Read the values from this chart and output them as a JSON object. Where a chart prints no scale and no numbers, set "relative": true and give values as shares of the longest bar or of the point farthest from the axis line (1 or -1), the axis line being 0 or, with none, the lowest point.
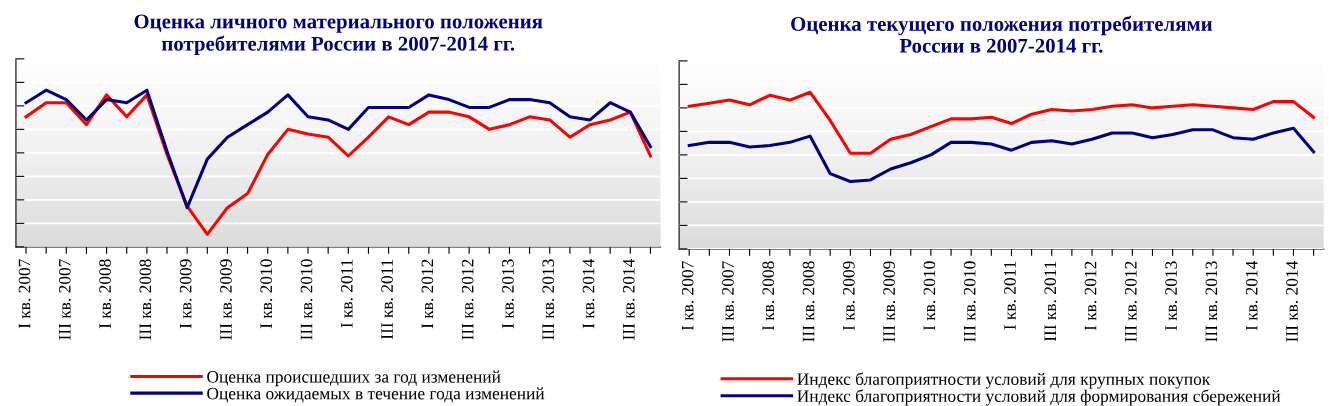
{
  "chart_data": [
    {
      "type": "line",
      "title": "Оценка личного материального положения\nпотребителями России в 2007-2014 гг.",
      "relative": true,
      "grid": "y",
      "legend": "bottom",
      "marker": "none",
      "line_style": "solid",
      "categories": [
        "I кв. 2007",
        null,
        "III кв. 2007",
        null,
        "I кв. 2008",
        null,
        "III кв. 2008",
        null,
        "I кв. 2009",
        null,
        "III кв. 2009",
        null,
        "I кв. 2010",
        null,
        "III кв. 2010",
        null,
        "I кв. 2011",
        null,
        "III кв. 2011",
        null,
        "I кв. 2012",
        null,
        "III кв. 2012",
        null,
        "I кв. 2013",
        null,
        "III кв. 2013",
        null,
        "I кв. 2014",
        null,
        "III кв. 2014",
        null
      ],
      "series": [
        {
          "name": "Оценка происшедших за год изменений",
          "color": "#ff0000",
          "values": [
            0.83,
            0.92,
            0.92,
            0.78,
            0.97,
            0.83,
            0.97,
            0.59,
            0.26,
            0.08,
            0.25,
            0.34,
            0.59,
            0.75,
            0.72,
            0.7,
            0.58,
            0.7,
            0.83,
            0.78,
            0.86,
            0.86,
            0.83,
            0.75,
            0.78,
            0.83,
            0.81,
            0.7,
            0.78,
            0.81,
            0.86,
            0.58
          ]
        },
        {
          "name": "Оценка ожидаемых в течение года изменений",
          "color": "#000080",
          "values": [
            0.92,
            1,
            0.94,
            0.81,
            0.94,
            0.92,
            1,
            0.61,
            0.25,
            0.56,
            0.7,
            0.78,
            0.86,
            0.97,
            0.83,
            0.81,
            0.75,
            0.89,
            0.89,
            0.89,
            0.97,
            0.94,
            0.89,
            0.89,
            0.94,
            0.94,
            0.92,
            0.83,
            0.81,
            0.92,
            0.86,
            0.64
          ]
        }
      ]
    },
    {
      "type": "line",
      "title": "Оценка текущего положения потребителями\nРоссии в 2007-2014 гг.",
      "relative": true,
      "grid": "y",
      "legend": "bottom",
      "marker": "none",
      "line_style": "solid",
      "categories": [
        "I кв. 2007",
        null,
        "III кв. 2007",
        null,
        "I кв. 2008",
        null,
        "III кв. 2008",
        null,
        "I кв. 2009",
        null,
        "III кв. 2009",
        null,
        "I кв. 2010",
        null,
        "III кв. 2010",
        null,
        "I кв. 2011",
        null,
        "III кв. 2011",
        null,
        "I кв. 2012",
        null,
        "III кв. 2012",
        null,
        "I кв. 2013",
        null,
        "III кв. 2013",
        null,
        "I кв. 2014",
        null,
        "III кв. 2014",
        null
      ],
      "series": [
        {
          "name": "Индекс благоприятности условий для крупных покупок",
          "color": "#ff0000",
          "values": [
            0.91,
            0.93,
            0.95,
            0.92,
            0.98,
            0.95,
            1,
            0.82,
            0.61,
            0.61,
            0.7,
            0.73,
            0.78,
            0.83,
            0.83,
            0.84,
            0.8,
            0.86,
            0.89,
            0.88,
            0.89,
            0.91,
            0.92,
            0.9,
            0.91,
            0.92,
            0.91,
            0.9,
            0.89,
            0.94,
            0.94,
            0.84
          ]
        },
        {
          "name": "Индекс благоприятности условий для формирования сбережений",
          "color": "#000080",
          "values": [
            0.66,
            0.68,
            0.68,
            0.65,
            0.66,
            0.68,
            0.72,
            0.48,
            0.43,
            0.44,
            0.51,
            0.55,
            0.6,
            0.68,
            0.68,
            0.67,
            0.63,
            0.68,
            0.69,
            0.67,
            0.7,
            0.74,
            0.74,
            0.71,
            0.73,
            0.76,
            0.76,
            0.71,
            0.7,
            0.74,
            0.77,
            0.62
          ]
        }
      ]
    }
  ]
}
